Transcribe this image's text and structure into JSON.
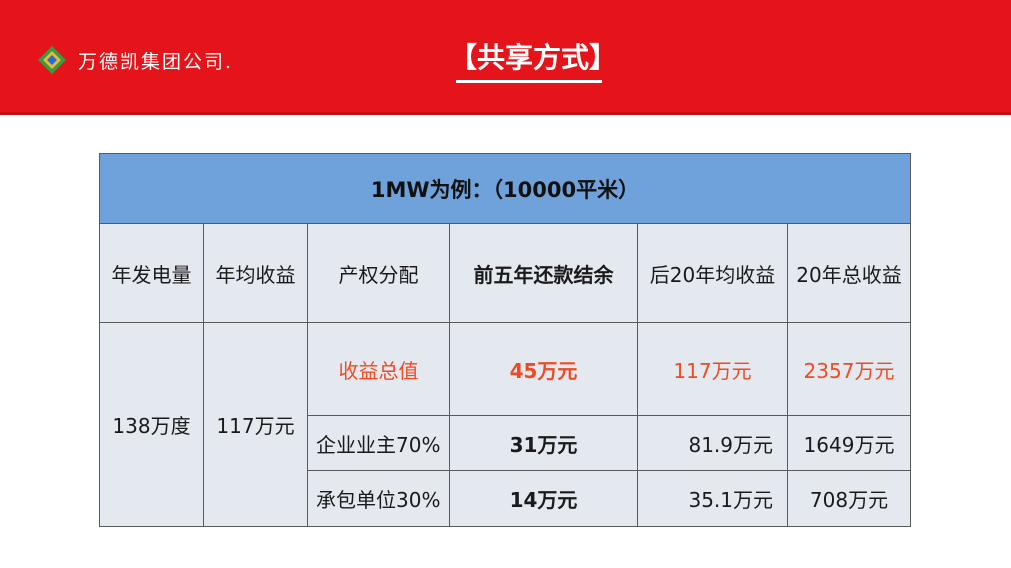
{
  "header": {
    "company_name": "万德凯集团公司.",
    "page_title": "【共享方式】",
    "colors": {
      "banner_red": "#e5141b",
      "table_blue": "#6fa2db",
      "highlight_red": "#f04a22"
    }
  },
  "table": {
    "banner": "1MW为例：（10000平米）",
    "columns": [
      "年发电量",
      "年均收益",
      "产权分配",
      "前五年还款结余",
      "后20年均收益",
      "20年总收益"
    ],
    "annual_generation": "138万度",
    "annual_income": "117万元",
    "rows": [
      {
        "label": "收益总值",
        "first_five": "45万元",
        "later_avg": "117万元",
        "total": "2357万元"
      },
      {
        "label": "企业业主70%",
        "first_five": "31万元",
        "later_avg": "81.9万元",
        "total": "1649万元"
      },
      {
        "label": "承包单位30%",
        "first_five": "14万元",
        "later_avg": "35.1万元",
        "total": "708万元"
      }
    ]
  }
}
